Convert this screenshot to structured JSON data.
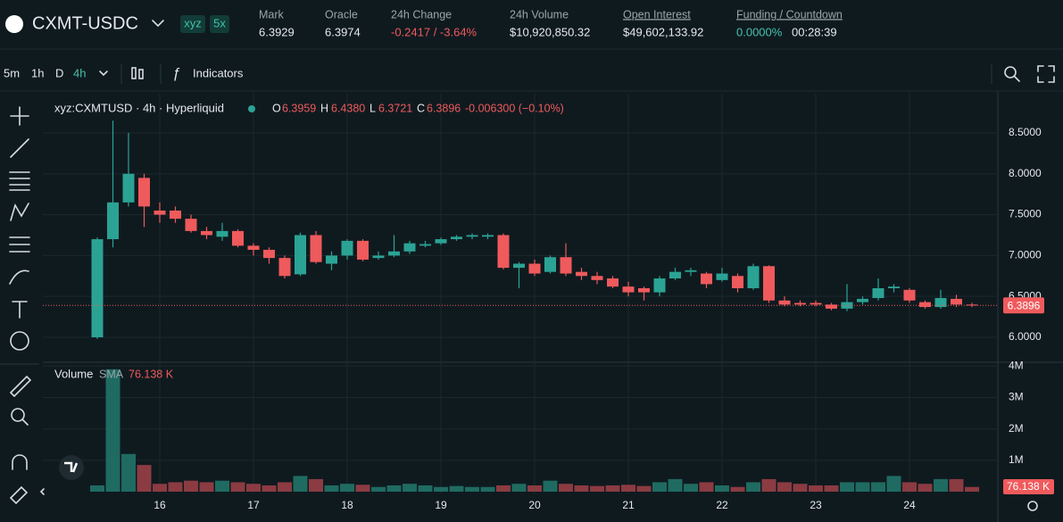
{
  "header": {
    "symbol": "CXMT-USDC",
    "tags": [
      "xyz",
      "5x"
    ],
    "stats": [
      {
        "label": "Mark",
        "value": "6.3929"
      },
      {
        "label": "Oracle",
        "value": "6.3974"
      },
      {
        "label": "24h Change",
        "value": "-0.2417 / -3.64%"
      },
      {
        "label": "24h Volume",
        "value": "$10,920,850.32"
      },
      {
        "label": "Open Interest",
        "value": "$49,602,133.92"
      },
      {
        "label": "Funding / Countdown",
        "value": "0.0000%",
        "countdown": "00:28:39"
      }
    ]
  },
  "toolbar": {
    "intervals": [
      "5m",
      "1h",
      "D",
      "4h"
    ],
    "indicators": "Indicators"
  },
  "chart": {
    "type": "candlestick",
    "legend": {
      "title": "xyz:CXMTUSD · 4h · Hyperliquid",
      "ohlc": [
        {
          "key": "O",
          "value": "6.3959"
        },
        {
          "key": "H",
          "value": "6.4380"
        },
        {
          "key": "L",
          "value": "6.3721"
        },
        {
          "key": "C",
          "value": "6.3896"
        }
      ],
      "change": "-0.006300 (−0.10%)"
    },
    "volume_legend": {
      "name": "Volume",
      "sma": "SMA",
      "sma_value": "76.138 K"
    },
    "up_color": "#2ba394",
    "down_color": "#ef5a5c",
    "up_volume_color": "#1f6b61",
    "down_volume_color": "#8b3b42",
    "open": [
      6.0,
      7.2,
      7.65,
      7.95,
      7.55,
      7.55,
      7.45,
      7.3,
      7.23,
      7.3,
      7.12,
      7.07,
      6.97,
      6.77,
      7.25,
      6.9,
      7.0,
      7.18,
      6.97,
      7.0,
      7.05,
      7.12,
      7.15,
      7.2,
      7.23,
      7.23,
      7.25,
      6.85,
      6.9,
      6.8,
      6.98,
      6.8,
      6.75,
      6.72,
      6.62,
      6.6,
      6.55,
      6.72,
      6.8,
      6.78,
      6.7,
      6.75,
      6.6,
      6.87,
      6.45,
      6.42,
      6.42,
      6.4,
      6.35,
      6.43,
      6.48,
      6.6,
      6.58,
      6.43,
      6.37,
      6.47,
      6.4
    ],
    "high": [
      7.22,
      8.65,
      8.5,
      8.0,
      7.65,
      7.6,
      7.5,
      7.35,
      7.4,
      7.32,
      7.15,
      7.1,
      7.0,
      7.28,
      7.3,
      7.05,
      7.2,
      7.2,
      7.05,
      7.25,
      7.18,
      7.18,
      7.22,
      7.25,
      7.27,
      7.27,
      7.27,
      6.92,
      6.95,
      7.0,
      7.15,
      6.85,
      6.8,
      6.75,
      6.68,
      6.62,
      6.75,
      6.85,
      6.85,
      6.8,
      6.85,
      6.78,
      6.9,
      6.88,
      6.5,
      6.45,
      6.45,
      6.42,
      6.65,
      6.5,
      6.72,
      6.65,
      6.6,
      6.45,
      6.58,
      6.52,
      6.42
    ],
    "low": [
      5.98,
      7.1,
      7.6,
      7.35,
      7.4,
      7.4,
      7.28,
      7.2,
      7.18,
      7.1,
      7.0,
      6.9,
      6.72,
      6.75,
      6.9,
      6.82,
      6.95,
      6.93,
      6.95,
      6.98,
      7.02,
      7.1,
      7.13,
      7.18,
      7.2,
      7.2,
      6.83,
      6.6,
      6.75,
      6.78,
      6.75,
      6.7,
      6.65,
      6.6,
      6.5,
      6.45,
      6.5,
      6.7,
      6.75,
      6.6,
      6.68,
      6.55,
      6.58,
      6.42,
      6.38,
      6.38,
      6.38,
      6.33,
      6.32,
      6.4,
      6.45,
      6.55,
      6.42,
      6.35,
      6.35,
      6.37,
      6.37
    ],
    "close": [
      7.2,
      7.65,
      8.0,
      7.6,
      7.5,
      7.45,
      7.3,
      7.25,
      7.3,
      7.12,
      7.07,
      6.97,
      6.75,
      7.25,
      6.92,
      7.0,
      7.18,
      6.95,
      7.0,
      7.05,
      7.15,
      7.14,
      7.2,
      7.23,
      7.25,
      7.25,
      6.85,
      6.9,
      6.78,
      6.98,
      6.78,
      6.75,
      6.7,
      6.62,
      6.55,
      6.55,
      6.72,
      6.8,
      6.82,
      6.65,
      6.78,
      6.6,
      6.87,
      6.45,
      6.4,
      6.4,
      6.4,
      6.35,
      6.43,
      6.47,
      6.6,
      6.62,
      6.45,
      6.37,
      6.48,
      6.4,
      6.39
    ],
    "volume": [
      0.2,
      3.9,
      1.2,
      0.85,
      0.25,
      0.3,
      0.35,
      0.3,
      0.35,
      0.3,
      0.25,
      0.2,
      0.3,
      0.5,
      0.4,
      0.2,
      0.25,
      0.22,
      0.15,
      0.2,
      0.25,
      0.2,
      0.15,
      0.18,
      0.15,
      0.15,
      0.2,
      0.25,
      0.2,
      0.35,
      0.25,
      0.2,
      0.18,
      0.2,
      0.22,
      0.18,
      0.3,
      0.4,
      0.25,
      0.3,
      0.2,
      0.15,
      0.3,
      0.4,
      0.3,
      0.25,
      0.2,
      0.2,
      0.3,
      0.3,
      0.3,
      0.5,
      0.3,
      0.25,
      0.4,
      0.4,
      0.15
    ],
    "ylim": [
      5.705,
      8.98
    ],
    "yticks": [
      {
        "value": 6.0,
        "label": "6.0000"
      },
      {
        "value": 6.5,
        "label": "6.5000"
      },
      {
        "value": 7.0,
        "label": "7.0000"
      },
      {
        "value": 7.5,
        "label": "7.5000"
      },
      {
        "value": 8.0,
        "label": "8.0000"
      },
      {
        "value": 8.5,
        "label": "8.5000"
      }
    ],
    "volume_lim": [
      0,
      4.15
    ],
    "volume_ticks": [
      {
        "value": 1,
        "label": "1M"
      },
      {
        "value": 2,
        "label": "2M"
      },
      {
        "value": 3,
        "label": "3M"
      },
      {
        "value": 4,
        "label": "4M"
      }
    ],
    "last_price": {
      "value": 6.3896,
      "label": "6.3896"
    },
    "day_labels": [
      "16",
      "17",
      "18",
      "19",
      "20",
      "21",
      "22",
      "23",
      "24"
    ],
    "grid": true
  }
}
